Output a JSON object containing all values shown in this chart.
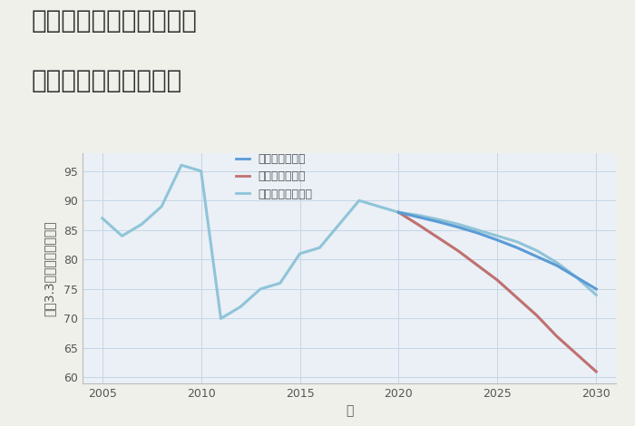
{
  "title_line1": "千葉県鎌ヶ谷市南初富の",
  "title_line2": "中古戸建ての価格推移",
  "xlabel": "年",
  "ylabel": "坪（3.3㎡）単価（万円）",
  "background_color": "#f0f0eb",
  "plot_background_color": "#eaf0f6",
  "grid_color": "#c5d5e5",
  "ylim": [
    59,
    98
  ],
  "yticks": [
    60,
    65,
    70,
    75,
    80,
    85,
    90,
    95
  ],
  "xlim": [
    2004.0,
    2031.0
  ],
  "xticks": [
    2005,
    2010,
    2015,
    2020,
    2025,
    2030
  ],
  "historical_years": [
    2005,
    2006,
    2007,
    2008,
    2009,
    2010,
    2011,
    2012,
    2013,
    2014,
    2015,
    2016,
    2017,
    2018,
    2019,
    2020
  ],
  "historical_values": [
    87,
    84,
    86,
    89,
    96,
    95,
    70,
    72,
    75,
    76,
    81,
    82,
    86,
    90,
    89,
    88
  ],
  "good_years": [
    2020,
    2021,
    2022,
    2023,
    2024,
    2025,
    2026,
    2027,
    2028,
    2029,
    2030
  ],
  "good_values": [
    88,
    87.2,
    86.4,
    85.5,
    84.5,
    83.3,
    82.0,
    80.5,
    79.0,
    77.0,
    75.0
  ],
  "bad_years": [
    2020,
    2021,
    2022,
    2023,
    2024,
    2025,
    2026,
    2027,
    2028,
    2029,
    2030
  ],
  "bad_values": [
    88,
    85.9,
    83.7,
    81.5,
    79.0,
    76.5,
    73.5,
    70.5,
    67.0,
    64.0,
    61.0
  ],
  "normal_years": [
    2020,
    2021,
    2022,
    2023,
    2024,
    2025,
    2026,
    2027,
    2028,
    2029,
    2030
  ],
  "normal_values": [
    88,
    87.5,
    86.8,
    86.0,
    85.0,
    84.0,
    83.0,
    81.5,
    79.5,
    77.0,
    74.0
  ],
  "good_color": "#5b9bd5",
  "bad_color": "#c07070",
  "normal_color": "#90c4d8",
  "historical_color": "#90c4d8",
  "legend_labels": [
    "グッドシナリオ",
    "バッドシナリオ",
    "ノーマルシナリオ"
  ],
  "legend_colors": [
    "#5b9bd5",
    "#c07070",
    "#90c4d8"
  ],
  "title_fontsize": 20,
  "axis_label_fontsize": 10,
  "tick_fontsize": 9,
  "legend_fontsize": 9
}
